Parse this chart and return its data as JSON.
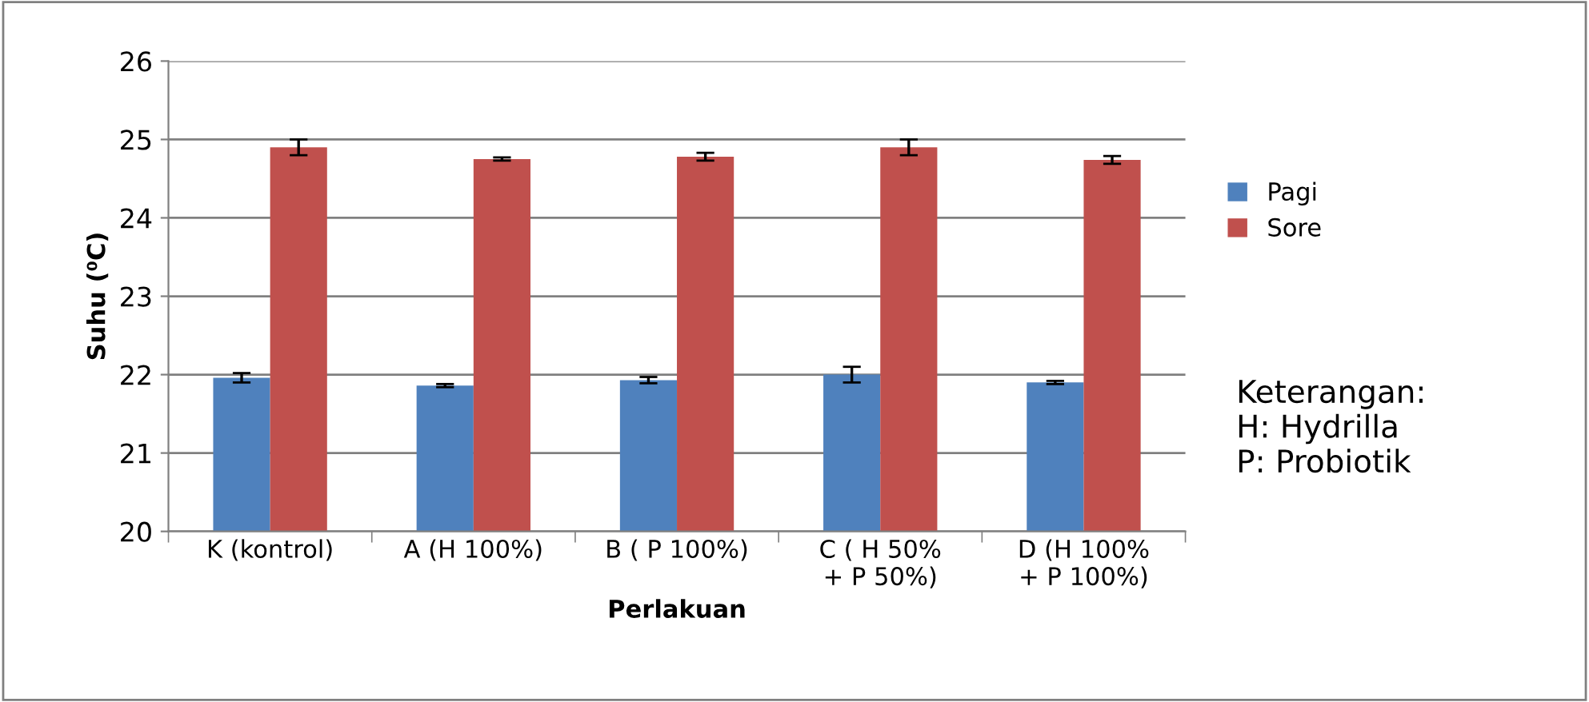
{
  "chart_data": {
    "type": "bar",
    "xlabel": "Perlakuan",
    "ylabel": "Suhu (⁰C)",
    "categories": [
      "K (kontrol)",
      "A (H 100%)",
      "B ( P 100%)",
      "C ( H 50%\n+ P 50%)",
      "D (H 100%\n+ P 100%)"
    ],
    "series": [
      {
        "name": "Pagi",
        "color": "#4f81bd",
        "values": [
          21.96,
          21.86,
          21.93,
          22.0,
          21.9
        ],
        "errors": [
          0.06,
          0.02,
          0.04,
          0.1,
          0.02
        ]
      },
      {
        "name": "Sore",
        "color": "#c0504d",
        "values": [
          24.9,
          24.75,
          24.78,
          24.9,
          24.74
        ],
        "errors": [
          0.1,
          0.02,
          0.05,
          0.1,
          0.05
        ]
      }
    ],
    "ylim": [
      20,
      26
    ],
    "yticks": [
      20,
      21,
      22,
      23,
      24,
      25,
      26
    ],
    "grid": "y",
    "legend": "right",
    "annotations": [
      "Keterangan:\nH: Hydrilla\nP: Probiotik"
    ]
  }
}
